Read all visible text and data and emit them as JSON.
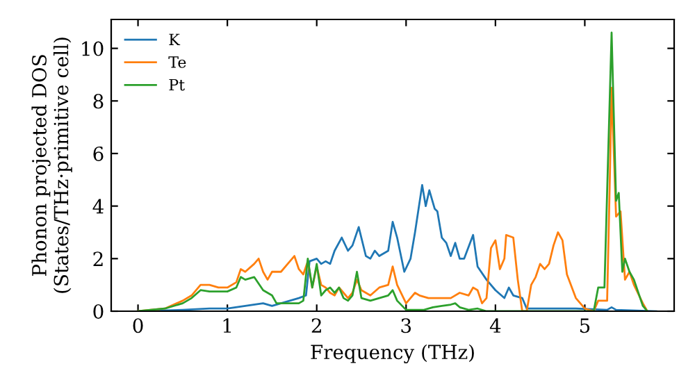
{
  "chart_data": {
    "type": "line",
    "xlabel": "Frequency (THz)",
    "ylabel": "Phonon projected DOS\n(States/THz·primitive cell)",
    "xlim": [
      -0.3,
      6.0
    ],
    "ylim": [
      0,
      11.1
    ],
    "xticks": [
      0,
      1,
      2,
      3,
      4,
      5
    ],
    "yticks": [
      0,
      2,
      4,
      6,
      8,
      10
    ],
    "legend": "top left",
    "grid": false,
    "series": [
      {
        "name": "K",
        "color": "#1f77b4",
        "x": [
          0,
          0.5,
          0.8,
          1.0,
          1.2,
          1.4,
          1.5,
          1.6,
          1.8,
          1.88,
          1.92,
          2.0,
          2.05,
          2.1,
          2.15,
          2.2,
          2.28,
          2.35,
          2.4,
          2.47,
          2.55,
          2.6,
          2.65,
          2.7,
          2.8,
          2.85,
          2.9,
          2.98,
          3.05,
          3.1,
          3.18,
          3.22,
          3.26,
          3.32,
          3.35,
          3.4,
          3.45,
          3.5,
          3.55,
          3.6,
          3.65,
          3.75,
          3.8,
          3.9,
          4.0,
          4.1,
          4.15,
          4.2,
          4.3,
          4.35,
          4.9,
          5.25,
          5.3,
          5.35,
          5.8
        ],
        "values": [
          0,
          0.05,
          0.1,
          0.1,
          0.2,
          0.3,
          0.2,
          0.3,
          0.5,
          0.6,
          1.9,
          2.0,
          1.8,
          1.9,
          1.8,
          2.3,
          2.8,
          2.3,
          2.5,
          3.2,
          2.1,
          2.0,
          2.3,
          2.1,
          2.3,
          3.4,
          2.8,
          1.5,
          2.0,
          3.0,
          4.8,
          4.0,
          4.6,
          3.9,
          3.8,
          2.8,
          2.6,
          2.1,
          2.6,
          2.0,
          2.0,
          2.9,
          1.7,
          1.2,
          0.8,
          0.5,
          0.9,
          0.6,
          0.5,
          0.1,
          0.1,
          0.05,
          0.15,
          0.05,
          0
        ]
      },
      {
        "name": "Te",
        "color": "#ff7f0e",
        "x": [
          0,
          0.3,
          0.5,
          0.6,
          0.7,
          0.8,
          0.9,
          1.0,
          1.1,
          1.15,
          1.2,
          1.3,
          1.35,
          1.4,
          1.45,
          1.5,
          1.6,
          1.7,
          1.75,
          1.8,
          1.85,
          1.9,
          1.95,
          2.0,
          2.05,
          2.1,
          2.15,
          2.2,
          2.25,
          2.3,
          2.35,
          2.4,
          2.45,
          2.5,
          2.6,
          2.7,
          2.8,
          2.85,
          2.9,
          3.0,
          3.1,
          3.15,
          3.25,
          3.4,
          3.5,
          3.6,
          3.7,
          3.75,
          3.8,
          3.85,
          3.9,
          3.95,
          4.0,
          4.05,
          4.1,
          4.12,
          4.2,
          4.25,
          4.3,
          4.35,
          4.4,
          4.45,
          4.5,
          4.55,
          4.6,
          4.65,
          4.7,
          4.75,
          4.8,
          4.9,
          5.0,
          5.1,
          5.15,
          5.25,
          5.28,
          5.3,
          5.35,
          5.4,
          5.45,
          5.5,
          5.55,
          5.65,
          5.7
        ],
        "values": [
          0,
          0.1,
          0.4,
          0.6,
          1.0,
          1.0,
          0.9,
          0.9,
          1.1,
          1.6,
          1.5,
          1.8,
          2.0,
          1.5,
          1.2,
          1.5,
          1.5,
          1.9,
          2.1,
          1.6,
          1.4,
          1.9,
          0.9,
          1.7,
          1.0,
          0.9,
          0.7,
          0.6,
          0.9,
          0.7,
          0.5,
          0.7,
          1.2,
          0.8,
          0.6,
          0.9,
          1.0,
          1.7,
          1.0,
          0.3,
          0.7,
          0.6,
          0.5,
          0.5,
          0.5,
          0.7,
          0.6,
          0.9,
          0.8,
          0.3,
          0.5,
          2.4,
          2.7,
          1.6,
          2.0,
          2.9,
          2.8,
          1.2,
          0,
          0,
          1.0,
          1.3,
          1.8,
          1.6,
          1.8,
          2.5,
          3.0,
          2.7,
          1.4,
          0.5,
          0.1,
          0,
          0.4,
          0.4,
          5,
          8.5,
          3.6,
          3.8,
          1.2,
          1.5,
          1.0,
          0.3,
          0
        ]
      },
      {
        "name": "Pt",
        "color": "#2ca02c",
        "x": [
          0,
          0.3,
          0.5,
          0.6,
          0.7,
          0.8,
          1.0,
          1.1,
          1.15,
          1.2,
          1.3,
          1.4,
          1.5,
          1.55,
          1.7,
          1.8,
          1.85,
          1.9,
          1.95,
          2.0,
          2.05,
          2.1,
          2.15,
          2.2,
          2.25,
          2.3,
          2.35,
          2.4,
          2.45,
          2.5,
          2.6,
          2.7,
          2.8,
          2.85,
          2.9,
          3.0,
          3.2,
          3.3,
          3.4,
          3.5,
          3.55,
          3.6,
          3.7,
          3.8,
          3.9,
          5.1,
          5.15,
          5.22,
          5.3,
          5.35,
          5.38,
          5.42,
          5.45,
          5.5,
          5.55,
          5.65,
          5.7
        ],
        "values": [
          0,
          0.1,
          0.3,
          0.5,
          0.8,
          0.75,
          0.75,
          0.9,
          1.3,
          1.2,
          1.3,
          0.8,
          0.6,
          0.3,
          0.3,
          0.3,
          0.4,
          2.0,
          0.9,
          1.8,
          0.6,
          0.8,
          0.9,
          0.7,
          0.9,
          0.5,
          0.4,
          0.6,
          1.5,
          0.5,
          0.4,
          0.5,
          0.6,
          0.8,
          0.4,
          0.05,
          0.05,
          0.15,
          0.2,
          0.25,
          0.3,
          0.15,
          0.05,
          0.1,
          0,
          0,
          0.9,
          0.9,
          10.6,
          4.2,
          4.5,
          1.5,
          2.0,
          1.5,
          1.2,
          0.2,
          0
        ]
      }
    ]
  }
}
